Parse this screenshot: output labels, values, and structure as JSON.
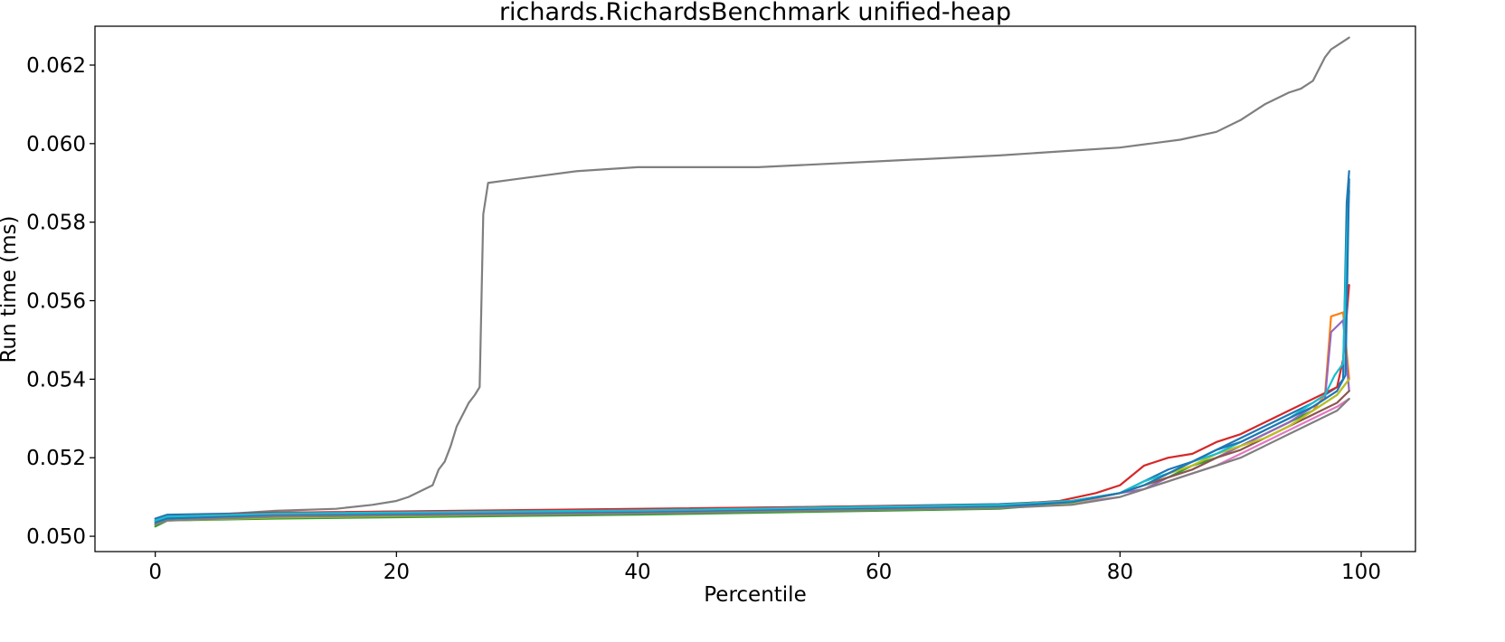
{
  "chart_data": {
    "type": "line",
    "title": "richards.RichardsBenchmark unified-heap",
    "xlabel": "Percentile",
    "ylabel": "Run time (ms)",
    "xlim": [
      -5,
      104.5
    ],
    "ylim": [
      0.04961,
      0.06299
    ],
    "xticks": [
      0,
      20,
      40,
      60,
      80,
      100
    ],
    "xtick_labels": [
      "0",
      "20",
      "40",
      "60",
      "80",
      "100"
    ],
    "yticks": [
      0.05,
      0.052,
      0.054,
      0.056,
      0.058,
      0.06,
      0.062
    ],
    "ytick_labels": [
      "0.050",
      "0.052",
      "0.054",
      "0.056",
      "0.058",
      "0.060",
      "0.062"
    ],
    "grid": false,
    "legend": "none",
    "series": [
      {
        "color": "#7f7f7f",
        "x": [
          0,
          2,
          5,
          10,
          15,
          18,
          20,
          21,
          22,
          23,
          23.5,
          24,
          24.5,
          25,
          25.5,
          26,
          26.5,
          26.9,
          27.2,
          27.6,
          30,
          35,
          40,
          50,
          60,
          70,
          75,
          80,
          85,
          88,
          90,
          92,
          94,
          95,
          96,
          97,
          97.5,
          98,
          99
        ],
        "y": [
          0.0504,
          0.05045,
          0.05055,
          0.05065,
          0.0507,
          0.0508,
          0.0509,
          0.051,
          0.05115,
          0.0513,
          0.0517,
          0.0519,
          0.0523,
          0.0528,
          0.0531,
          0.0534,
          0.0536,
          0.0538,
          0.0582,
          0.059,
          0.0591,
          0.0593,
          0.0594,
          0.0594,
          0.05955,
          0.0597,
          0.0598,
          0.0599,
          0.0601,
          0.0603,
          0.0606,
          0.061,
          0.0613,
          0.0614,
          0.0616,
          0.0622,
          0.0624,
          0.0625,
          0.0627
        ]
      },
      {
        "color": "#1f77b4",
        "x": [
          0,
          1,
          10,
          40,
          70,
          76,
          80,
          82,
          84,
          86,
          88,
          90,
          92,
          94,
          96,
          97,
          98,
          98.5,
          98.8,
          99
        ],
        "y": [
          0.05045,
          0.05055,
          0.0506,
          0.05068,
          0.05082,
          0.0509,
          0.0511,
          0.0514,
          0.0517,
          0.0519,
          0.0522,
          0.0525,
          0.0528,
          0.0531,
          0.0534,
          0.0536,
          0.0538,
          0.054,
          0.0585,
          0.0593
        ]
      },
      {
        "color": "#ff7f0e",
        "x": [
          0,
          1,
          10,
          40,
          70,
          76,
          80,
          82,
          84,
          86,
          88,
          90,
          92,
          94,
          96,
          97,
          97.5,
          98.5,
          99
        ],
        "y": [
          0.0503,
          0.05045,
          0.0505,
          0.0506,
          0.05075,
          0.05088,
          0.0511,
          0.0513,
          0.0516,
          0.0518,
          0.0521,
          0.0523,
          0.0526,
          0.0529,
          0.0532,
          0.0536,
          0.0556,
          0.0557,
          0.054
        ]
      },
      {
        "color": "#2ca02c",
        "x": [
          0,
          1,
          10,
          40,
          70,
          76,
          80,
          82,
          84,
          86,
          88,
          90,
          92,
          94,
          96,
          98,
          99
        ],
        "y": [
          0.05025,
          0.0504,
          0.05045,
          0.05055,
          0.0507,
          0.05085,
          0.0511,
          0.0513,
          0.0515,
          0.0518,
          0.052,
          0.0523,
          0.0526,
          0.0529,
          0.0532,
          0.0536,
          0.054
        ]
      },
      {
        "color": "#d62728",
        "x": [
          0,
          1,
          10,
          40,
          70,
          75,
          78,
          80,
          82,
          84,
          86,
          88,
          90,
          92,
          94,
          96,
          98,
          98.5,
          99
        ],
        "y": [
          0.0504,
          0.0505,
          0.0506,
          0.0507,
          0.0508,
          0.0509,
          0.0511,
          0.0513,
          0.0518,
          0.052,
          0.0521,
          0.0524,
          0.0526,
          0.0529,
          0.0532,
          0.0535,
          0.0538,
          0.0545,
          0.0564
        ]
      },
      {
        "color": "#9467bd",
        "x": [
          0,
          1,
          10,
          40,
          70,
          76,
          80,
          82,
          84,
          86,
          88,
          90,
          92,
          94,
          96,
          97,
          97.5,
          98.5,
          99
        ],
        "y": [
          0.0504,
          0.0505,
          0.05055,
          0.05065,
          0.05078,
          0.0509,
          0.0511,
          0.0512,
          0.0515,
          0.0517,
          0.052,
          0.0523,
          0.0526,
          0.0529,
          0.0533,
          0.0535,
          0.0552,
          0.0555,
          0.0537
        ]
      },
      {
        "color": "#8c564b",
        "x": [
          0,
          1,
          10,
          40,
          70,
          76,
          80,
          82,
          84,
          86,
          88,
          90,
          92,
          94,
          96,
          98,
          99
        ],
        "y": [
          0.0503,
          0.05045,
          0.0505,
          0.0506,
          0.05075,
          0.05085,
          0.0511,
          0.0513,
          0.0515,
          0.0517,
          0.052,
          0.0522,
          0.0525,
          0.0528,
          0.0531,
          0.0534,
          0.0537
        ]
      },
      {
        "color": "#e377c2",
        "x": [
          0,
          1,
          10,
          40,
          70,
          76,
          80,
          82,
          84,
          86,
          88,
          90,
          92,
          94,
          96,
          98,
          99
        ],
        "y": [
          0.0503,
          0.0504,
          0.0505,
          0.0506,
          0.05075,
          0.05085,
          0.051,
          0.0512,
          0.0514,
          0.0516,
          0.0518,
          0.0521,
          0.0524,
          0.0527,
          0.053,
          0.0533,
          0.0535
        ]
      },
      {
        "color": "#bcbd22",
        "x": [
          0,
          1,
          10,
          40,
          70,
          76,
          80,
          82,
          84,
          86,
          88,
          90,
          92,
          94,
          96,
          98,
          99
        ],
        "y": [
          0.0503,
          0.0504,
          0.05048,
          0.05058,
          0.05072,
          0.05085,
          0.0511,
          0.0513,
          0.0516,
          0.0518,
          0.0521,
          0.0523,
          0.0525,
          0.0528,
          0.0532,
          0.0536,
          0.054
        ]
      },
      {
        "color": "#17becf",
        "x": [
          0,
          1,
          10,
          40,
          70,
          76,
          80,
          82,
          84,
          86,
          88,
          90,
          92,
          94,
          96,
          97,
          97.8,
          98.5,
          98.8,
          99
        ],
        "y": [
          0.0504,
          0.0505,
          0.05058,
          0.05066,
          0.0508,
          0.0509,
          0.0511,
          0.0514,
          0.0516,
          0.0519,
          0.0521,
          0.0524,
          0.0527,
          0.053,
          0.0534,
          0.0536,
          0.0541,
          0.0544,
          0.0575,
          0.0588
        ]
      },
      {
        "color": "#1f77b4",
        "x": [
          0,
          1,
          10,
          40,
          70,
          76,
          80,
          82,
          84,
          86,
          88,
          90,
          92,
          94,
          96,
          98,
          98.7,
          99
        ],
        "y": [
          0.05035,
          0.05045,
          0.05052,
          0.0506,
          0.05075,
          0.05087,
          0.0511,
          0.0513,
          0.0516,
          0.0519,
          0.0522,
          0.0524,
          0.0527,
          0.053,
          0.0533,
          0.0537,
          0.0541,
          0.0591
        ]
      },
      {
        "color": "#7f7f7f",
        "x": [
          0,
          1,
          10,
          40,
          70,
          76,
          80,
          82,
          84,
          86,
          88,
          90,
          92,
          94,
          96,
          98,
          99
        ],
        "y": [
          0.0503,
          0.0504,
          0.0505,
          0.05058,
          0.05072,
          0.0508,
          0.051,
          0.0512,
          0.0514,
          0.0516,
          0.0518,
          0.052,
          0.0523,
          0.0526,
          0.0529,
          0.0532,
          0.0535
        ]
      }
    ]
  }
}
